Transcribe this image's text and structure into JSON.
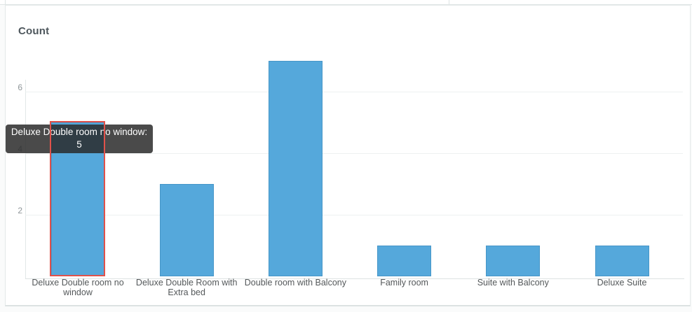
{
  "chart_data": {
    "type": "bar",
    "title": "Count",
    "categories": [
      "Deluxe Double room no window",
      "Deluxe Double Room with Extra bed",
      "Double room with Balcony",
      "Family room",
      "Suite with Balcony",
      "Deluxe Suite"
    ],
    "values": [
      5,
      3,
      7,
      1,
      1,
      1
    ],
    "xlabel": "",
    "ylabel": "Count",
    "yticks": [
      2,
      4,
      6
    ],
    "ylim": [
      0,
      7.5
    ],
    "grid": true,
    "legend": "none",
    "bar_color": "#55a8db",
    "bar_border_color": "#4696c8",
    "highlighted_index": 0,
    "highlight_border_color": "#e0524b"
  },
  "tooltip": {
    "label": "Deluxe Double room no window:",
    "value": "5"
  }
}
